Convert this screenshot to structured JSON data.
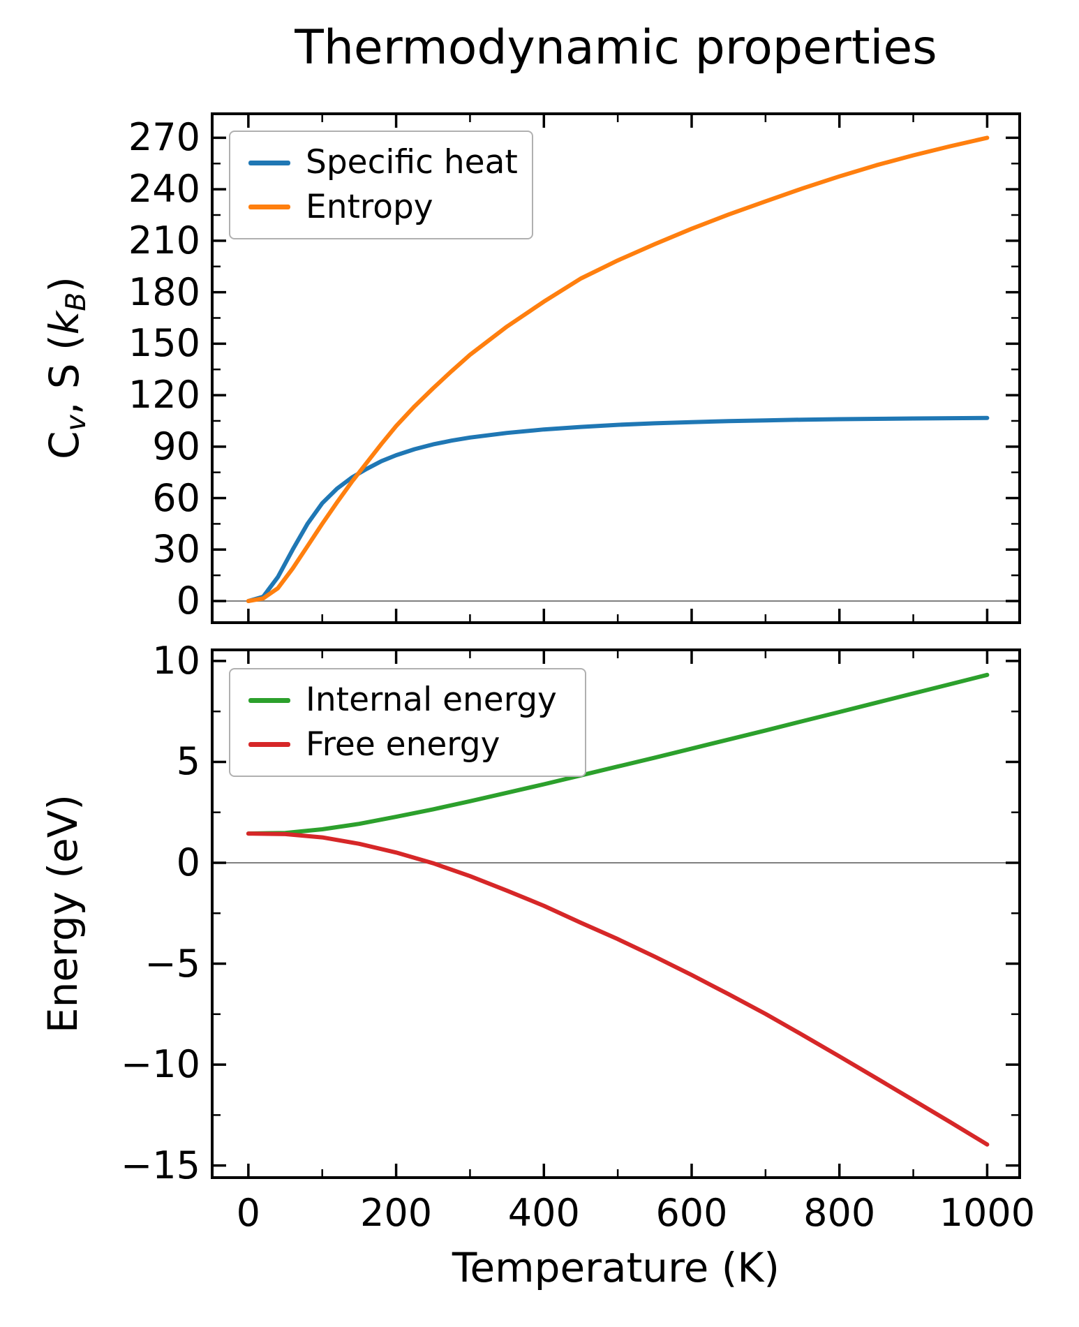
{
  "figure": {
    "title": "Thermodynamic properties",
    "xlabel": "Temperature (K)"
  },
  "top_ylabel_parts": {
    "c": "C",
    "c_sub": "v",
    "mid": ", S (",
    "k": "k",
    "k_sub": "B",
    "close": ")"
  },
  "chart_data": [
    {
      "type": "line",
      "title": "Thermodynamic properties",
      "xlabel": "Temperature (K)",
      "ylabel": "C_v, S (k_B)",
      "x": [
        0,
        20,
        40,
        60,
        80,
        100,
        120,
        140,
        160,
        180,
        200,
        225,
        250,
        275,
        300,
        350,
        400,
        450,
        500,
        550,
        600,
        650,
        700,
        750,
        800,
        850,
        900,
        950,
        1000
      ],
      "series": [
        {
          "name": "Specific heat",
          "color": "#1f77b4",
          "values": [
            0,
            2.5,
            14,
            30,
            45,
            57,
            65.5,
            72,
            77,
            81.5,
            85,
            88.5,
            91.3,
            93.5,
            95.3,
            98,
            100,
            101.5,
            102.7,
            103.6,
            104.3,
            104.9,
            105.3,
            105.7,
            106,
            106.2,
            106.4,
            106.55,
            106.7
          ]
        },
        {
          "name": "Entropy",
          "color": "#ff7f0e",
          "values": [
            0,
            1.5,
            7.5,
            19,
            32,
            45,
            57.5,
            69.5,
            80.5,
            91.5,
            102,
            113.5,
            124,
            134,
            143.5,
            160,
            174.5,
            188,
            198.5,
            208,
            217,
            225.3,
            233,
            240.5,
            247.5,
            254,
            259.8,
            265.1,
            270
          ]
        }
      ],
      "xlim": [
        -49,
        1044
      ],
      "ylim": [
        -12.6,
        284
      ],
      "grid": false,
      "zero_line": 0,
      "zero_line_color": "#808080",
      "legend_position": "upper left",
      "xticks": {
        "values": [
          0,
          200,
          400,
          600,
          800,
          1000
        ],
        "labels": [
          "0",
          "200",
          "400",
          "600",
          "800",
          "1000"
        ],
        "minor": [
          100,
          300,
          500,
          700,
          900
        ],
        "show_labels": false
      },
      "yticks": {
        "values": [
          0,
          30,
          60,
          90,
          120,
          150,
          180,
          210,
          240,
          270
        ],
        "labels": [
          "0",
          "30",
          "60",
          "90",
          "120",
          "150",
          "180",
          "210",
          "240",
          "270"
        ],
        "minor": [
          15,
          45,
          75,
          105,
          135,
          165,
          195,
          225,
          255
        ]
      }
    },
    {
      "type": "line",
      "xlabel": "Temperature (K)",
      "ylabel": "Energy (eV)",
      "x": [
        0,
        50,
        100,
        150,
        200,
        250,
        300,
        350,
        400,
        450,
        500,
        550,
        600,
        650,
        700,
        750,
        800,
        850,
        900,
        950,
        1000
      ],
      "series": [
        {
          "name": "Internal energy",
          "color": "#2ca02c",
          "values": [
            1.45,
            1.48,
            1.66,
            1.93,
            2.28,
            2.65,
            3.05,
            3.47,
            3.89,
            4.33,
            4.77,
            5.21,
            5.66,
            6.11,
            6.56,
            7.02,
            7.47,
            7.93,
            8.39,
            8.85,
            9.31
          ]
        },
        {
          "name": "Free energy",
          "color": "#d62728",
          "values": [
            1.45,
            1.42,
            1.26,
            0.94,
            0.51,
            -0.02,
            -0.66,
            -1.38,
            -2.13,
            -2.97,
            -3.78,
            -4.65,
            -5.56,
            -6.51,
            -7.49,
            -8.53,
            -9.59,
            -10.67,
            -11.76,
            -12.85,
            -13.96
          ]
        }
      ],
      "xlim": [
        -49,
        1044
      ],
      "ylim": [
        -15.6,
        10.55
      ],
      "grid": false,
      "zero_line": 0,
      "zero_line_color": "#808080",
      "legend_position": "upper left",
      "xticks": {
        "values": [
          0,
          200,
          400,
          600,
          800,
          1000
        ],
        "labels": [
          "0",
          "200",
          "400",
          "600",
          "800",
          "1000"
        ],
        "minor": [
          100,
          300,
          500,
          700,
          900
        ],
        "show_labels": true
      },
      "yticks": {
        "values": [
          10,
          5,
          0,
          -5,
          -10,
          -15
        ],
        "labels": [
          "10",
          "5",
          "0",
          "−5",
          "−10",
          "−15"
        ],
        "minor": [
          7.5,
          2.5,
          -2.5,
          -7.5,
          -12.5
        ]
      }
    }
  ]
}
